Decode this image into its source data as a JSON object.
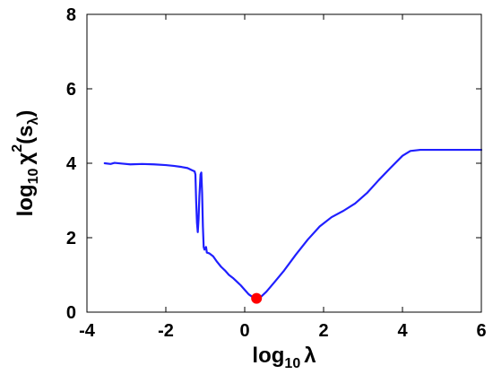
{
  "chart_data": {
    "type": "line",
    "title": "",
    "xlabel": {
      "main": "log",
      "sub": "10",
      "symbol": "λ"
    },
    "ylabel": {
      "main": "log",
      "sub": "10",
      "chi": "χ",
      "sup": "2",
      "open": "(s",
      "sub2": "λ",
      "close": ")"
    },
    "xlim": [
      -4,
      6
    ],
    "ylim": [
      0,
      8
    ],
    "xticks": [
      "-4",
      "-2",
      "0",
      "2",
      "4",
      "6"
    ],
    "yticks": [
      "0",
      "2",
      "4",
      "6",
      "8"
    ],
    "grid": false,
    "colors": {
      "line": "#1f1fff",
      "marker": "#ff0000",
      "axis": "#000000"
    },
    "series": [
      {
        "x": [
          -3.55,
          -3.4,
          -3.3,
          -3.1,
          -2.9,
          -2.6,
          -2.3,
          -2.0,
          -1.8,
          -1.6,
          -1.45,
          -1.35,
          -1.27,
          -1.25,
          -1.23,
          -1.21,
          -1.19,
          -1.17,
          -1.15,
          -1.12,
          -1.1,
          -1.08,
          -1.06,
          -1.04,
          -1.02,
          -1.0,
          -0.98,
          -0.96,
          -0.9,
          -0.8,
          -0.7,
          -0.6,
          -0.5,
          -0.4,
          -0.3,
          -0.2,
          -0.1,
          0.0,
          0.1,
          0.18,
          0.25,
          0.3,
          0.4,
          0.55,
          0.75,
          1.0,
          1.3,
          1.6,
          1.9,
          2.2,
          2.5,
          2.8,
          3.1,
          3.4,
          3.7,
          4.0,
          4.2,
          4.45,
          5.0,
          5.5,
          6.0
        ],
        "y": [
          4.0,
          3.98,
          4.01,
          3.99,
          3.97,
          3.98,
          3.97,
          3.95,
          3.93,
          3.9,
          3.87,
          3.82,
          3.78,
          3.7,
          2.95,
          2.4,
          2.15,
          2.5,
          3.1,
          3.7,
          3.75,
          3.2,
          2.3,
          1.75,
          1.68,
          1.72,
          1.75,
          1.6,
          1.58,
          1.5,
          1.35,
          1.22,
          1.12,
          1.0,
          0.92,
          0.82,
          0.72,
          0.6,
          0.48,
          0.42,
          0.38,
          0.36,
          0.4,
          0.55,
          0.8,
          1.12,
          1.55,
          1.95,
          2.3,
          2.55,
          2.72,
          2.92,
          3.2,
          3.55,
          3.88,
          4.2,
          4.33,
          4.36,
          4.36,
          4.36,
          4.36
        ]
      }
    ],
    "highlight_point": {
      "x": 0.3,
      "y": 0.37
    }
  }
}
